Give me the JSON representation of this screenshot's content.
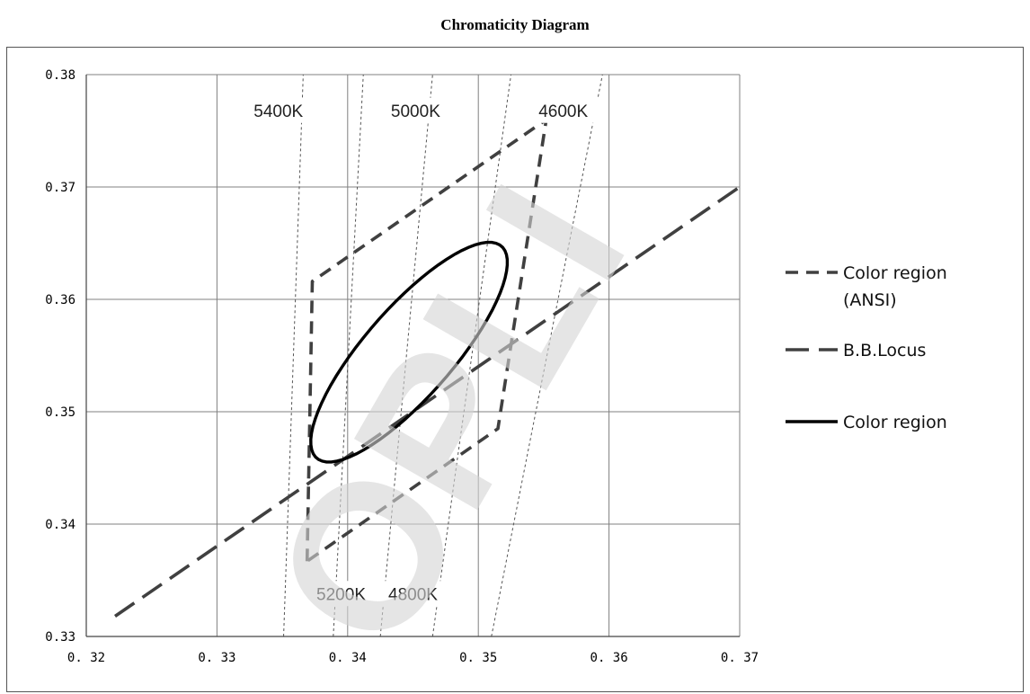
{
  "chart_data": {
    "type": "line",
    "title": "Chromaticity Diagram",
    "xlabel": "",
    "ylabel": "",
    "xlim": [
      0.32,
      0.37
    ],
    "ylim": [
      0.33,
      0.38
    ],
    "x_ticks": [
      "0. 32",
      "0. 33",
      "0. 34",
      "0. 35",
      "0. 36",
      "0. 37"
    ],
    "y_ticks": [
      "0.33",
      "0.34",
      "0.35",
      "0.36",
      "0.37",
      "0.38"
    ],
    "grid": true,
    "legend_position": "right",
    "legend": [
      "Color region (ANSI)",
      "B.B.Locus",
      "Color region"
    ],
    "series": [
      {
        "name": "Color region (ANSI)",
        "style": "dashed",
        "color": "#404040",
        "points": [
          [
            0.3369,
            0.3367
          ],
          [
            0.3373,
            0.3616
          ],
          [
            0.3552,
            0.376
          ],
          [
            0.3515,
            0.3485
          ],
          [
            0.3369,
            0.3367
          ]
        ]
      },
      {
        "name": "B.B.Locus",
        "style": "long-dash",
        "color": "#404040",
        "points": [
          [
            0.3222,
            0.3318
          ],
          [
            0.37,
            0.37
          ]
        ]
      },
      {
        "name": "Color region",
        "style": "solid",
        "color": "#000000",
        "ellipse": {
          "center": [
            0.3447,
            0.3553
          ],
          "semi_major": 0.0118,
          "semi_minor": 0.0036,
          "rotation_deg": 54
        }
      }
    ],
    "isotherms": [
      {
        "label": "5400K",
        "points": [
          [
            0.3351,
            0.33
          ],
          [
            0.3366,
            0.38
          ]
        ]
      },
      {
        "label": "5200K",
        "points": [
          [
            0.3389,
            0.33
          ],
          [
            0.3412,
            0.38
          ]
        ]
      },
      {
        "label": "5000K",
        "points": [
          [
            0.3425,
            0.33
          ],
          [
            0.3465,
            0.38
          ]
        ]
      },
      {
        "label": "4800K",
        "points": [
          [
            0.3465,
            0.33
          ],
          [
            0.3525,
            0.38
          ]
        ]
      },
      {
        "label": "4600K",
        "points": [
          [
            0.351,
            0.33
          ],
          [
            0.3595,
            0.38
          ]
        ]
      }
    ],
    "watermark": "OPLI",
    "colors": {
      "grid": "#808080",
      "isotherm": "#555555",
      "watermark": "#d4d4d4"
    }
  }
}
